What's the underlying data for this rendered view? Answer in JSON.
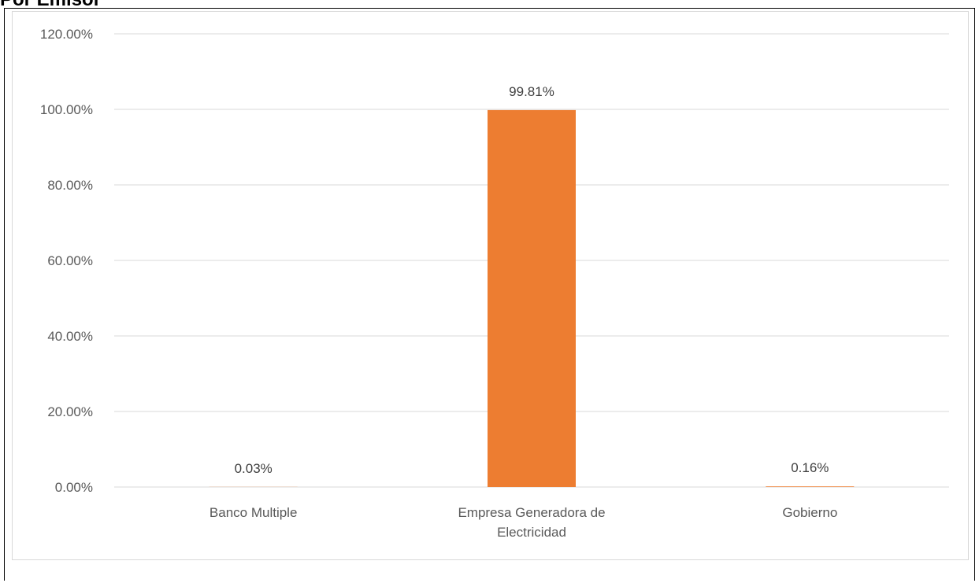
{
  "page": {
    "title": "Por Emisor"
  },
  "chart_data": {
    "type": "bar",
    "categories": [
      "Banco Multiple",
      "Empresa Generadora de Electricidad",
      "Gobierno"
    ],
    "category_lines": [
      [
        "Banco Multiple"
      ],
      [
        "Empresa Generadora de",
        "Electricidad"
      ],
      [
        "Gobierno"
      ]
    ],
    "values": [
      0.03,
      99.81,
      0.16
    ],
    "data_labels": [
      "0.03%",
      "99.81%",
      "0.16%"
    ],
    "title": "",
    "xlabel": "",
    "ylabel": "",
    "ylim": [
      0,
      120
    ],
    "yticks": [
      0,
      20,
      40,
      60,
      80,
      100,
      120
    ],
    "ytick_labels": [
      "0.00%",
      "20.00%",
      "40.00%",
      "60.00%",
      "80.00%",
      "100.00%",
      "120.00%"
    ],
    "grid": true,
    "legend": "none",
    "bar_color": "#ED7D31",
    "grid_color": "#D9D9D9"
  }
}
